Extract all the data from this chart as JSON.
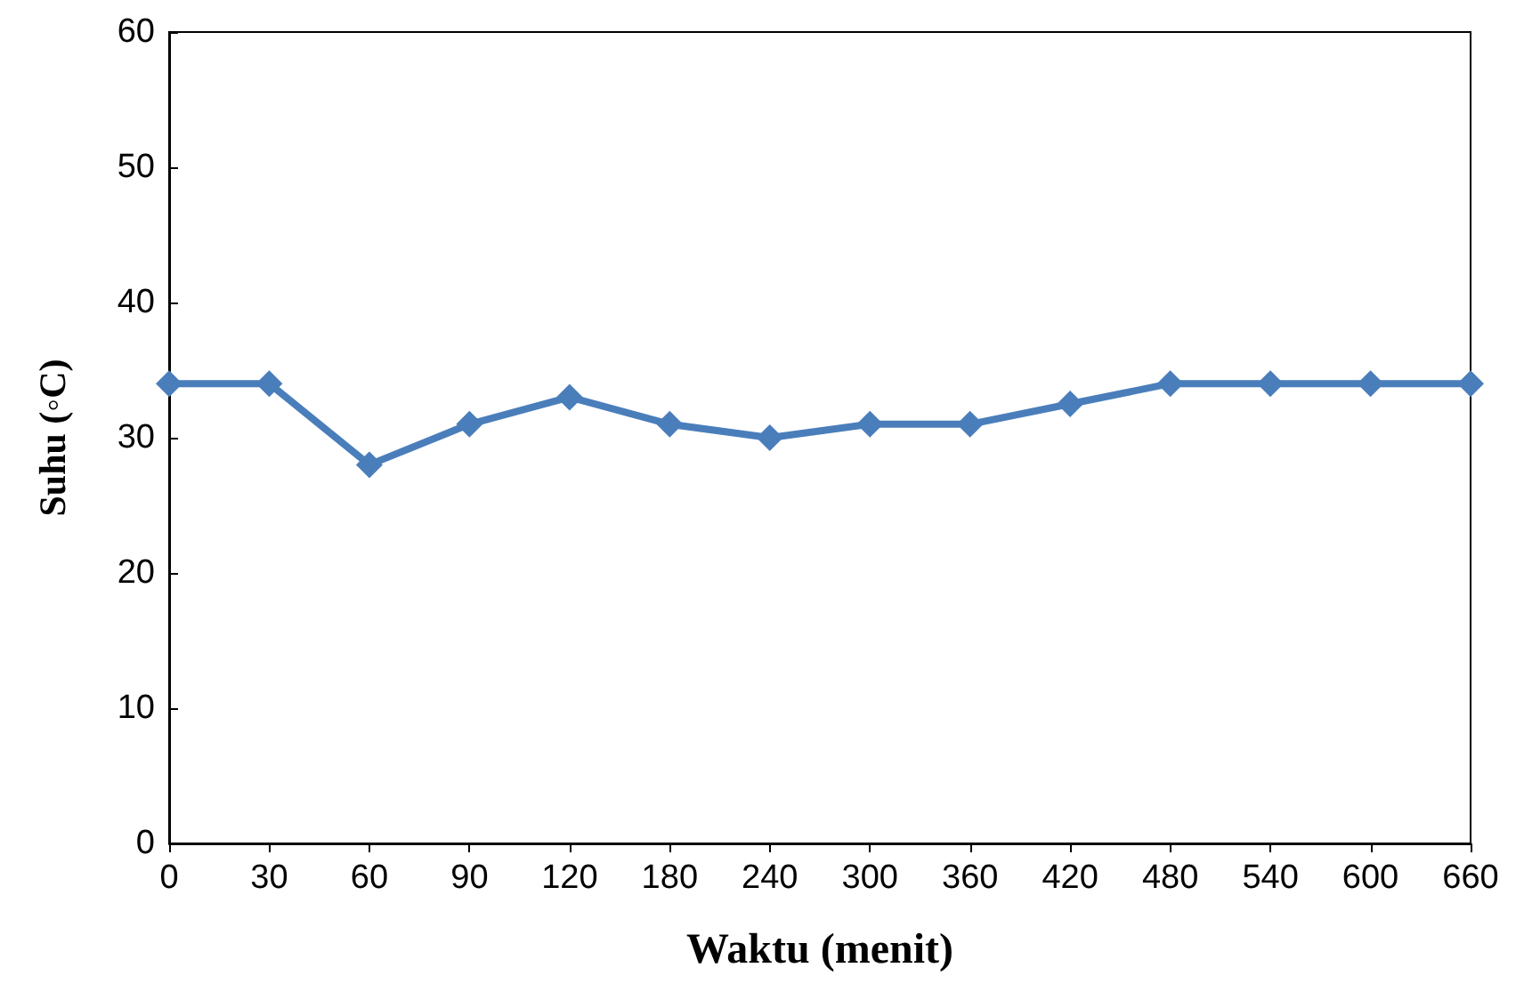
{
  "chart_data": {
    "type": "line",
    "xlabel": "Waktu (menit)",
    "ylabel": "Suhu (◦C)",
    "categories": [
      "0",
      "30",
      "60",
      "90",
      "120",
      "180",
      "240",
      "300",
      "360",
      "420",
      "480",
      "540",
      "600",
      "660"
    ],
    "series": [
      {
        "color": "#4a7ebb",
        "values": [
          34,
          34,
          28,
          31,
          33,
          31,
          30,
          31,
          31,
          32.5,
          34,
          34,
          34,
          34
        ]
      }
    ],
    "ylim": [
      0,
      60
    ],
    "yticks": [
      0,
      10,
      20,
      30,
      40,
      50,
      60
    ],
    "grid": false,
    "marker": "diamond",
    "line_style": "solid"
  }
}
